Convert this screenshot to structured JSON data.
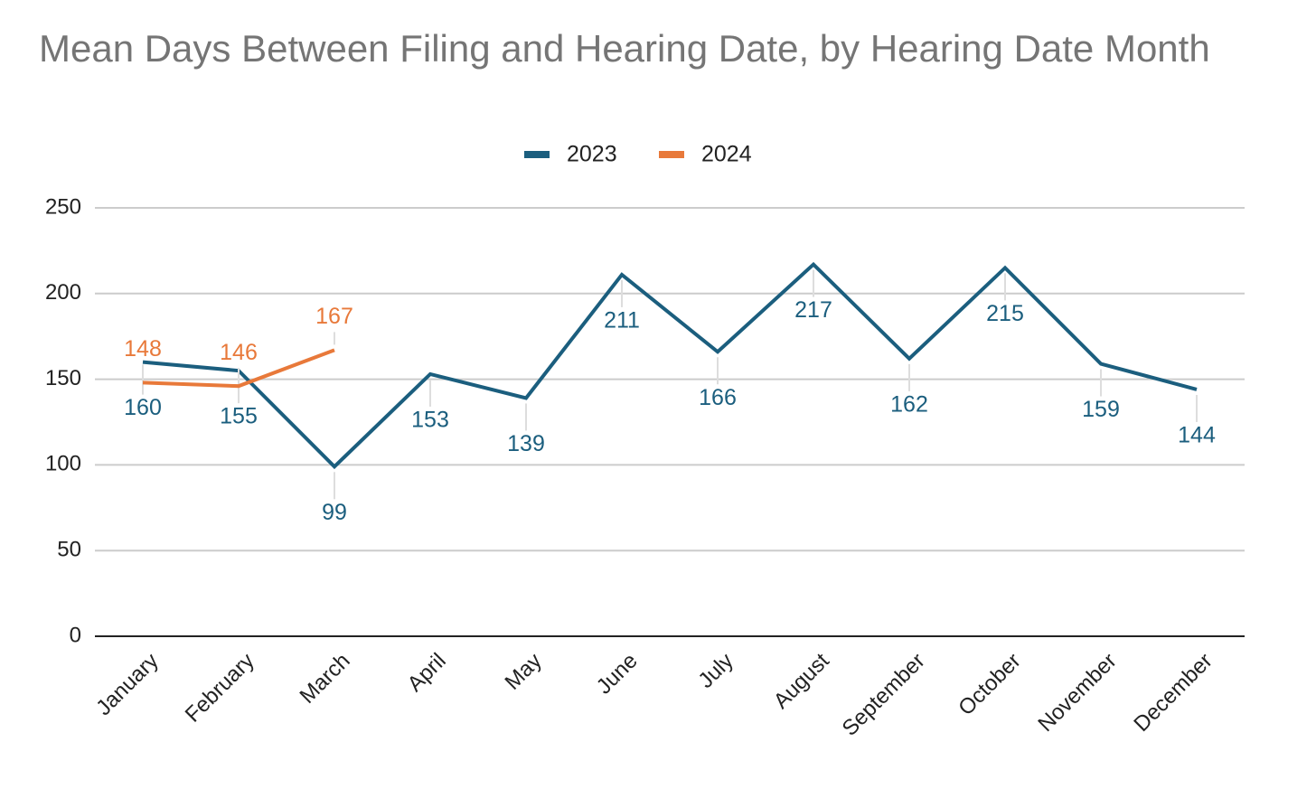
{
  "chart_data": {
    "type": "line",
    "title": "Mean Days Between Filing and Hearing Date, by Hearing Date Month",
    "categories": [
      "January",
      "February",
      "March",
      "April",
      "May",
      "June",
      "July",
      "August",
      "September",
      "October",
      "November",
      "December"
    ],
    "series": [
      {
        "name": "2023",
        "color": "#1b5e7e",
        "values": [
          160,
          155,
          99,
          153,
          139,
          211,
          166,
          217,
          162,
          215,
          159,
          144
        ]
      },
      {
        "name": "2024",
        "color": "#e8793a",
        "values": [
          148,
          146,
          167,
          null,
          null,
          null,
          null,
          null,
          null,
          null,
          null,
          null
        ]
      }
    ],
    "ylim": [
      0,
      250
    ],
    "yticks": [
      0,
      50,
      100,
      150,
      200,
      250
    ],
    "grid": true,
    "legend": "top"
  }
}
